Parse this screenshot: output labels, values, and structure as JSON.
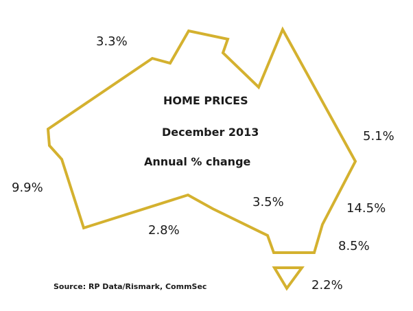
{
  "title": {
    "line1": "HOME PRICES",
    "line2": "December 2013",
    "line3": "Annual % change"
  },
  "source": "Source: RP Data/Rismark, CommSec",
  "outline_color": "#d4b12f",
  "values": {
    "nt": "3.3%",
    "wa": "9.9%",
    "sa": "2.8%",
    "qld": "5.1%",
    "central": "3.5%",
    "nsw": "14.5%",
    "vic": "8.5%",
    "tas": "2.2%"
  }
}
